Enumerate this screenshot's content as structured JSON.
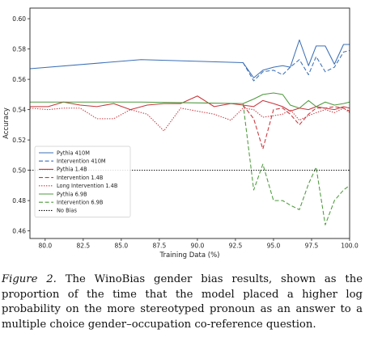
{
  "chart_data": {
    "type": "line",
    "title": "",
    "xlabel": "Training Data (%)",
    "ylabel": "Accuracy",
    "xlim": [
      79,
      100
    ],
    "ylim": [
      0.455,
      0.607
    ],
    "xticks": [
      "80.0",
      "82.5",
      "85.0",
      "87.5",
      "90.0",
      "92.5",
      "95.0",
      "97.5",
      "100.0"
    ],
    "yticks": [
      "0.46",
      "0.48",
      "0.50",
      "0.52",
      "0.54",
      "0.56",
      "0.58",
      "0.60"
    ],
    "grid": false,
    "legend_position": "lower-left",
    "series": [
      {
        "name": "Pythia 410M",
        "color": "#3b6fb6",
        "dash": "solid",
        "x": [
          79,
          86.3,
          93,
          93.7,
          94.3,
          95.0,
          95.6,
          96.1,
          96.7,
          97.3,
          97.8,
          98.4,
          99.0,
          99.6,
          100.0
        ],
        "y": [
          0.567,
          0.573,
          0.571,
          0.561,
          0.566,
          0.568,
          0.569,
          0.568,
          0.586,
          0.569,
          0.582,
          0.582,
          0.57,
          0.583,
          0.583
        ]
      },
      {
        "name": "Intervention 410M",
        "color": "#3b6fb6",
        "dash": "dashed",
        "x": [
          93,
          93.7,
          94.3,
          95.0,
          95.6,
          96.1,
          96.7,
          97.3,
          97.8,
          98.4,
          99.0,
          99.6,
          100.0
        ],
        "y": [
          0.571,
          0.559,
          0.565,
          0.566,
          0.563,
          0.568,
          0.573,
          0.563,
          0.575,
          0.565,
          0.568,
          0.578,
          0.579
        ]
      },
      {
        "name": "Pythia 1.4B",
        "color": "#c8353b",
        "dash": "solid",
        "x": [
          79,
          80.2,
          81.2,
          82.3,
          83.4,
          84.5,
          85.6,
          86.7,
          87.8,
          88.9,
          90.0,
          91.1,
          92.2,
          93.0,
          93.7,
          94.3,
          95.0,
          95.6,
          96.1,
          96.7,
          97.3,
          97.8,
          98.4,
          99.0,
          99.6,
          100.0
        ],
        "y": [
          0.542,
          0.542,
          0.545,
          0.543,
          0.542,
          0.544,
          0.54,
          0.543,
          0.544,
          0.544,
          0.549,
          0.542,
          0.544,
          0.543,
          0.542,
          0.546,
          0.544,
          0.542,
          0.539,
          0.541,
          0.54,
          0.542,
          0.541,
          0.54,
          0.542,
          0.541
        ]
      },
      {
        "name": "Intervention 1.4B",
        "color": "#c8353b",
        "dash": "dashed",
        "x": [
          93,
          93.7,
          94.3,
          95.0,
          95.6,
          96.1,
          96.7,
          97.3,
          97.8,
          98.4,
          99.0,
          99.6,
          100.0
        ],
        "y": [
          0.543,
          0.534,
          0.514,
          0.54,
          0.541,
          0.537,
          0.53,
          0.537,
          0.541,
          0.541,
          0.542,
          0.541,
          0.539
        ]
      },
      {
        "name": "Long Intervention 1.4B",
        "color": "#c8353b",
        "dash": "dotted",
        "x": [
          79,
          80.2,
          81.2,
          82.3,
          83.4,
          84.5,
          85.6,
          86.7,
          87.8,
          88.9,
          90.0,
          91.1,
          92.2,
          93.0,
          93.7,
          94.3,
          95.0,
          95.6,
          96.1,
          96.7,
          97.3,
          97.8,
          98.4,
          99.0,
          99.6,
          100.0
        ],
        "y": [
          0.541,
          0.54,
          0.541,
          0.541,
          0.534,
          0.534,
          0.54,
          0.537,
          0.526,
          0.541,
          0.539,
          0.537,
          0.533,
          0.541,
          0.54,
          0.535,
          0.536,
          0.537,
          0.54,
          0.533,
          0.536,
          0.538,
          0.54,
          0.538,
          0.541,
          0.538
        ]
      },
      {
        "name": "Pythia 6.9B",
        "color": "#4c9a3c",
        "dash": "solid",
        "x": [
          79,
          86.3,
          93,
          93.7,
          94.3,
          95.0,
          95.6,
          96.1,
          96.7,
          97.3,
          97.8,
          98.4,
          99.0,
          99.6,
          100.0
        ],
        "y": [
          0.545,
          0.545,
          0.544,
          0.547,
          0.55,
          0.551,
          0.55,
          0.543,
          0.541,
          0.546,
          0.542,
          0.545,
          0.543,
          0.544,
          0.545
        ]
      },
      {
        "name": "Intervention 6.9B",
        "color": "#4c9a3c",
        "dash": "dashed",
        "x": [
          93,
          93.7,
          94.3,
          95.0,
          95.6,
          96.1,
          96.7,
          97.3,
          97.8,
          98.4,
          99.0,
          99.6,
          100.0
        ],
        "y": [
          0.544,
          0.487,
          0.504,
          0.48,
          0.48,
          0.477,
          0.474,
          0.491,
          0.502,
          0.464,
          0.48,
          0.487,
          0.49
        ]
      },
      {
        "name": "No Bias",
        "color": "#000000",
        "dash": "dotted",
        "x": [
          79,
          100
        ],
        "y": [
          0.5,
          0.5
        ]
      }
    ]
  },
  "caption": {
    "label": "Figure 2.",
    "text": " The WinoBias gender bias results, shown as the proportion of the time that the model placed a higher log probability on the more stereotyped pronoun as an answer to a multiple choice gender–occupation co-reference question."
  }
}
